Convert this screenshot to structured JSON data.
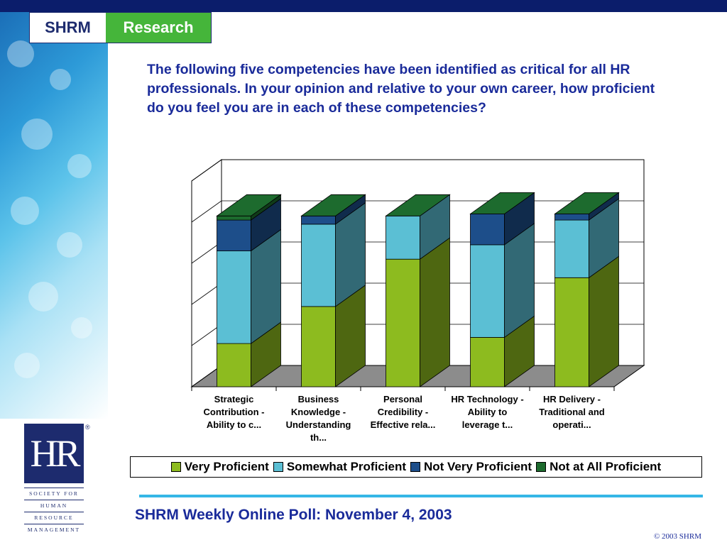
{
  "header": {
    "brand_left": "SHRM",
    "brand_right": "Research"
  },
  "question": "The following five competencies have been identified as critical for all HR professionals. In your opinion and relative to your own career, how proficient do you feel you are in each of these competencies?",
  "chart_data": {
    "type": "bar",
    "stacked": true,
    "three_d": true,
    "categories": [
      "Strategic Contribution - Ability to c...",
      "Business Knowledge - Understanding th...",
      "Personal Credibility - Effective rela...",
      "HR Technology - Ability to leverage t...",
      "HR Delivery - Traditional and operati..."
    ],
    "category_lines": [
      [
        "Strategic",
        "Contribution -",
        "Ability to c..."
      ],
      [
        "Business",
        "Knowledge -",
        "Understanding",
        "th..."
      ],
      [
        "Personal",
        "Credibility -",
        "Effective rela..."
      ],
      [
        "HR Technology -",
        "Ability to",
        "leverage t..."
      ],
      [
        "HR Delivery -",
        "Traditional and",
        "operati..."
      ]
    ],
    "series": [
      {
        "name": "Very Proficient",
        "color": "#8dbb1f",
        "values": [
          21,
          39,
          62,
          24,
          53
        ]
      },
      {
        "name": "Somewhat Proficient",
        "color": "#5bbfd4",
        "values": [
          45,
          40,
          21,
          45,
          28
        ]
      },
      {
        "name": "Not Very Proficient",
        "color": "#1d4e8a",
        "values": [
          15,
          4,
          0,
          15,
          3
        ]
      },
      {
        "name": "Not at All Proficient",
        "color": "#1d6b2e",
        "values": [
          2,
          0,
          0,
          0,
          0
        ]
      }
    ],
    "ylim": [
      0,
      100
    ],
    "grid": true,
    "legend_position": "bottom"
  },
  "legend_title": "",
  "footer": {
    "title": "SHRM Weekly Online Poll: November 4, 2003",
    "copyright": "© 2003 SHRM"
  },
  "hr_logo": {
    "mark": "HR",
    "reg": "®",
    "lines": [
      "SOCIETY FOR",
      "HUMAN",
      "RESOURCE",
      "MANAGEMENT"
    ]
  }
}
